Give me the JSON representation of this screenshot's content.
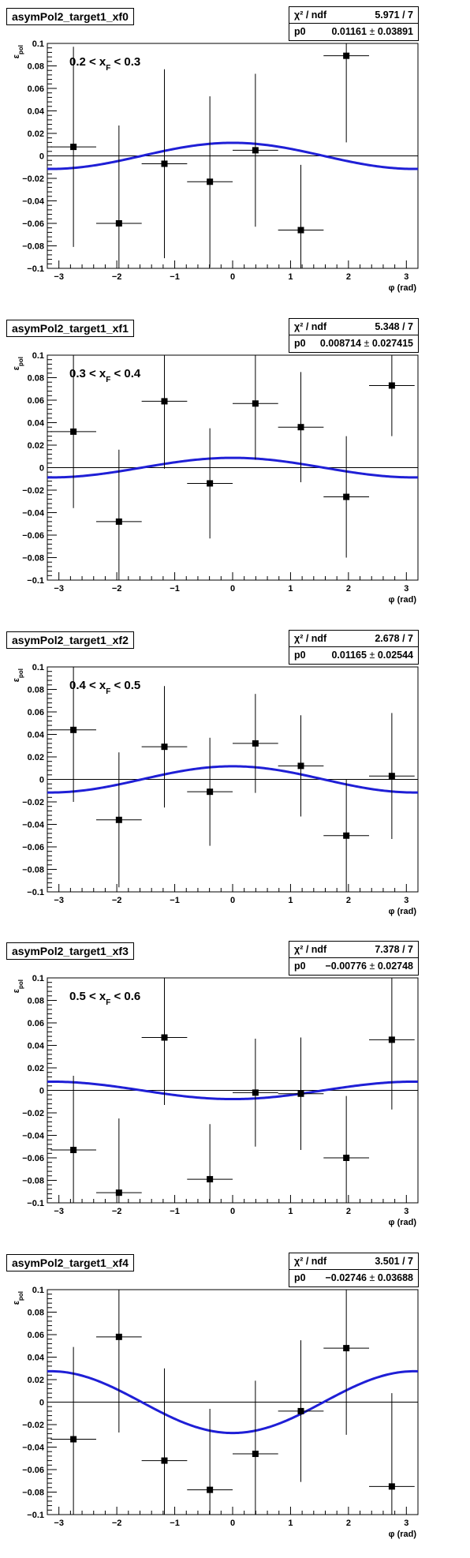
{
  "chart_data": [
    {
      "type": "scatter",
      "title": "asymPol2_target1_xf0",
      "annotation": "0.2 < x_F < 0.3",
      "xlabel": "φ (rad)",
      "ylabel": "ε_pol",
      "xlim": [
        -3.2,
        3.2
      ],
      "ylim": [
        -0.1,
        0.1
      ],
      "xticks": [
        "−3",
        "−2",
        "−1",
        "0",
        "1",
        "2",
        "3"
      ],
      "yticks": [
        "−0.1",
        "−0.08",
        "−0.06",
        "−0.04",
        "−0.02",
        "0",
        "0.02",
        "0.04",
        "0.06",
        "0.08",
        "0.1"
      ],
      "stats": {
        "chi2_label": "χ² / ndf",
        "chi2_value": "5.971 / 7",
        "param_label": "p0",
        "param_value": "0.01161",
        "param_error": "0.03891"
      },
      "fit": {
        "function": "p0*cos(phi)",
        "p0": 0.01161,
        "color": "#1f1fd6"
      },
      "points": [
        {
          "x": -2.749,
          "y": 0.008,
          "xerr": 0.393,
          "yerr": 0.089
        },
        {
          "x": -1.963,
          "y": -0.06,
          "xerr": 0.393,
          "yerr": 0.087
        },
        {
          "x": -1.178,
          "y": -0.007,
          "xerr": 0.393,
          "yerr": 0.084
        },
        {
          "x": -0.393,
          "y": -0.023,
          "xerr": 0.393,
          "yerr": 0.076
        },
        {
          "x": 0.393,
          "y": 0.005,
          "xerr": 0.393,
          "yerr": 0.068
        },
        {
          "x": 1.178,
          "y": -0.066,
          "xerr": 0.393,
          "yerr": 0.058
        },
        {
          "x": 1.963,
          "y": 0.089,
          "xerr": 0.393,
          "yerr": 0.077
        }
      ]
    },
    {
      "type": "scatter",
      "title": "asymPol2_target1_xf1",
      "annotation": "0.3 < x_F < 0.4",
      "xlabel": "φ (rad)",
      "ylabel": "ε_pol",
      "xlim": [
        -3.2,
        3.2
      ],
      "ylim": [
        -0.1,
        0.1
      ],
      "xticks": [
        "−3",
        "−2",
        "−1",
        "0",
        "1",
        "2",
        "3"
      ],
      "yticks": [
        "−0.1",
        "−0.08",
        "−0.06",
        "−0.04",
        "−0.02",
        "0",
        "0.02",
        "0.04",
        "0.06",
        "0.08",
        "0.1"
      ],
      "stats": {
        "chi2_label": "χ² / ndf",
        "chi2_value": "5.348 / 7",
        "param_label": "p0",
        "param_value": "0.008714",
        "param_error": "0.027415"
      },
      "fit": {
        "function": "p0*cos(phi)",
        "p0": 0.008714,
        "color": "#1f1fd6"
      },
      "points": [
        {
          "x": -2.749,
          "y": 0.032,
          "xerr": 0.393,
          "yerr": 0.068
        },
        {
          "x": -1.963,
          "y": -0.048,
          "xerr": 0.393,
          "yerr": 0.064
        },
        {
          "x": -1.178,
          "y": 0.059,
          "xerr": 0.393,
          "yerr": 0.06
        },
        {
          "x": -0.393,
          "y": -0.014,
          "xerr": 0.393,
          "yerr": 0.049
        },
        {
          "x": 0.393,
          "y": 0.057,
          "xerr": 0.393,
          "yerr": 0.05
        },
        {
          "x": 1.178,
          "y": 0.036,
          "xerr": 0.393,
          "yerr": 0.049
        },
        {
          "x": 1.963,
          "y": -0.026,
          "xerr": 0.393,
          "yerr": 0.054
        },
        {
          "x": 2.749,
          "y": 0.073,
          "xerr": 0.393,
          "yerr": 0.045
        }
      ]
    },
    {
      "type": "scatter",
      "title": "asymPol2_target1_xf2",
      "annotation": "0.4 < x_F < 0.5",
      "xlabel": "φ (rad)",
      "ylabel": "ε_pol",
      "xlim": [
        -3.2,
        3.2
      ],
      "ylim": [
        -0.1,
        0.1
      ],
      "xticks": [
        "−3",
        "−2",
        "−1",
        "0",
        "1",
        "2",
        "3"
      ],
      "yticks": [
        "−0.1",
        "−0.08",
        "−0.06",
        "−0.04",
        "−0.02",
        "0",
        "0.02",
        "0.04",
        "0.06",
        "0.08",
        "0.1"
      ],
      "stats": {
        "chi2_label": "χ² / ndf",
        "chi2_value": "2.678 / 7",
        "param_label": "p0",
        "param_value": "0.01165",
        "param_error": "0.02544"
      },
      "fit": {
        "function": "p0*cos(phi)",
        "p0": 0.01165,
        "color": "#1f1fd6"
      },
      "points": [
        {
          "x": -2.749,
          "y": 0.044,
          "xerr": 0.393,
          "yerr": 0.064
        },
        {
          "x": -1.963,
          "y": -0.036,
          "xerr": 0.393,
          "yerr": 0.06
        },
        {
          "x": -1.178,
          "y": 0.029,
          "xerr": 0.393,
          "yerr": 0.054
        },
        {
          "x": -0.393,
          "y": -0.011,
          "xerr": 0.393,
          "yerr": 0.048
        },
        {
          "x": 0.393,
          "y": 0.032,
          "xerr": 0.393,
          "yerr": 0.044
        },
        {
          "x": 1.178,
          "y": 0.012,
          "xerr": 0.393,
          "yerr": 0.045
        },
        {
          "x": 1.963,
          "y": -0.05,
          "xerr": 0.393,
          "yerr": 0.05
        },
        {
          "x": 2.749,
          "y": 0.003,
          "xerr": 0.393,
          "yerr": 0.056
        }
      ]
    },
    {
      "type": "scatter",
      "title": "asymPol2_target1_xf3",
      "annotation": "0.5 < x_F < 0.6",
      "xlabel": "φ (rad)",
      "ylabel": "ε_pol",
      "xlim": [
        -3.2,
        3.2
      ],
      "ylim": [
        -0.1,
        0.1
      ],
      "xticks": [
        "−3",
        "−2",
        "−1",
        "0",
        "1",
        "2",
        "3"
      ],
      "yticks": [
        "−0.1",
        "−0.08",
        "−0.06",
        "−0.04",
        "−0.02",
        "0",
        "0.02",
        "0.04",
        "0.06",
        "0.08",
        "0.1"
      ],
      "stats": {
        "chi2_label": "χ² / ndf",
        "chi2_value": "7.378 / 7",
        "param_label": "p0",
        "param_value": "−0.00776",
        "param_error": "0.02748"
      },
      "fit": {
        "function": "p0*cos(phi)",
        "p0": -0.00776,
        "color": "#1f1fd6"
      },
      "points": [
        {
          "x": -2.749,
          "y": -0.053,
          "xerr": 0.393,
          "yerr": 0.066
        },
        {
          "x": -1.963,
          "y": -0.091,
          "xerr": 0.393,
          "yerr": 0.066
        },
        {
          "x": -1.178,
          "y": 0.047,
          "xerr": 0.393,
          "yerr": 0.06
        },
        {
          "x": -0.393,
          "y": -0.079,
          "xerr": 0.393,
          "yerr": 0.049
        },
        {
          "x": 0.393,
          "y": -0.002,
          "xerr": 0.393,
          "yerr": 0.048
        },
        {
          "x": 1.178,
          "y": -0.003,
          "xerr": 0.393,
          "yerr": 0.05
        },
        {
          "x": 1.963,
          "y": -0.06,
          "xerr": 0.393,
          "yerr": 0.055
        },
        {
          "x": 2.749,
          "y": 0.045,
          "xerr": 0.393,
          "yerr": 0.062
        }
      ]
    },
    {
      "type": "scatter",
      "title": "asymPol2_target1_xf4",
      "annotation": "",
      "xlabel": "φ (rad)",
      "ylabel": "ε_pol",
      "xlim": [
        -3.2,
        3.2
      ],
      "ylim": [
        -0.1,
        0.1
      ],
      "xticks": [
        "−3",
        "−2",
        "−1",
        "0",
        "1",
        "2",
        "3"
      ],
      "yticks": [
        "−0.1",
        "−0.08",
        "−0.06",
        "−0.04",
        "−0.02",
        "0",
        "0.02",
        "0.04",
        "0.06",
        "0.08",
        "0.1"
      ],
      "stats": {
        "chi2_label": "χ² / ndf",
        "chi2_value": "3.501 / 7",
        "param_label": "p0",
        "param_value": "−0.02746",
        "param_error": "0.03688"
      },
      "fit": {
        "function": "p0*cos(phi)",
        "p0": -0.02746,
        "color": "#1f1fd6"
      },
      "points": [
        {
          "x": -2.749,
          "y": -0.033,
          "xerr": 0.393,
          "yerr": 0.082
        },
        {
          "x": -1.963,
          "y": 0.058,
          "xerr": 0.393,
          "yerr": 0.085
        },
        {
          "x": -1.178,
          "y": -0.052,
          "xerr": 0.393,
          "yerr": 0.082
        },
        {
          "x": -0.393,
          "y": -0.078,
          "xerr": 0.393,
          "yerr": 0.072
        },
        {
          "x": 0.393,
          "y": -0.046,
          "xerr": 0.393,
          "yerr": 0.065
        },
        {
          "x": 1.178,
          "y": -0.008,
          "xerr": 0.393,
          "yerr": 0.063
        },
        {
          "x": 1.963,
          "y": 0.048,
          "xerr": 0.393,
          "yerr": 0.077
        },
        {
          "x": 2.749,
          "y": -0.075,
          "xerr": 0.393,
          "yerr": 0.083
        }
      ]
    }
  ]
}
